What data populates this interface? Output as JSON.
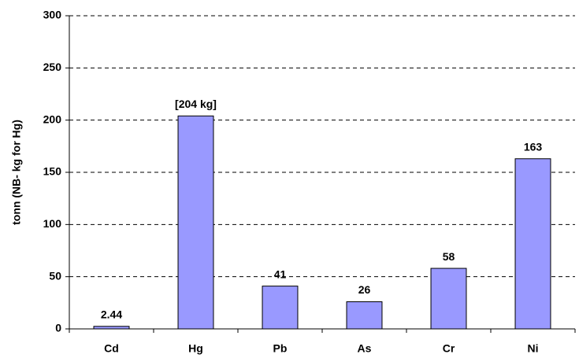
{
  "chart_data": {
    "type": "bar",
    "y_label": "tonn (NB- kg for Hg)",
    "categories": [
      "Cd",
      "Hg",
      "Pb",
      "As",
      "Cr",
      "Ni"
    ],
    "values": [
      2.44,
      204,
      41,
      26,
      58,
      163
    ],
    "value_labels": [
      "2.44",
      "[204 kg]",
      "41",
      "26",
      "58",
      "163"
    ],
    "color": "#9999ff",
    "ylim": [
      0,
      300
    ],
    "yticks": [
      0,
      50,
      100,
      150,
      200,
      250,
      300
    ],
    "grid": true
  }
}
